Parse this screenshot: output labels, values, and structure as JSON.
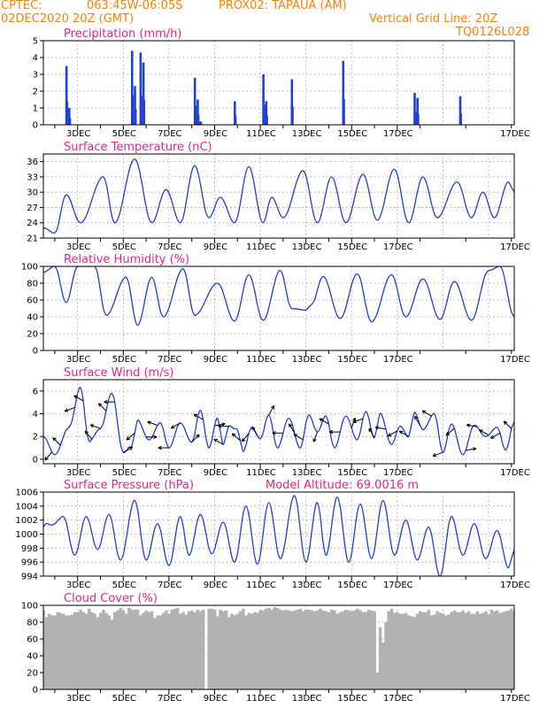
{
  "header": {
    "source": "CPTEC:",
    "coords": "063:45W-06:05S",
    "station": "PROX02: TAPAUA (AM)",
    "date": "02DEC2020 20Z (GMT)",
    "grid_note": "Vertical Grid Line: 20Z",
    "run_code": "TQ0126L028"
  },
  "colors": {
    "header": "#ff7f00",
    "title": "#e8238a",
    "series": "#1f3fd6",
    "cloud": "#b2b2b2",
    "grid": "#9a9a9a"
  },
  "x_axis": {
    "date_labels": [
      "3DEC",
      "5DEC",
      "7DEC",
      "9DEC",
      "11DEC",
      "13DEC",
      "15DEC",
      "17DEC"
    ],
    "start": "02DEC2020 20Z",
    "end": "17DEC2020 00Z",
    "step_hours": 3
  },
  "chart_data": [
    {
      "type": "bar",
      "title": "Precipitation (mm/h)",
      "ylim": [
        0,
        5
      ],
      "yticks": [
        "0",
        "1",
        "2",
        "3",
        "4",
        "5"
      ],
      "values": [
        0,
        0,
        0,
        0,
        0,
        0,
        0,
        0,
        3.5,
        1.0,
        0,
        0,
        0,
        0,
        0,
        0,
        0,
        0,
        0,
        0,
        0,
        0,
        0,
        0,
        0,
        0,
        0,
        0,
        0,
        0,
        0,
        4.4,
        2.3,
        0,
        4.3,
        3.7,
        0,
        0,
        0,
        0,
        0,
        0,
        0,
        0,
        0,
        0,
        0,
        0,
        0,
        0,
        0,
        0,
        0,
        2.8,
        1.5,
        0.2,
        0,
        0,
        0,
        0,
        0,
        0,
        0,
        0,
        0,
        0,
        0,
        1.4,
        0,
        0,
        0,
        0,
        0,
        0,
        0,
        0,
        0,
        3.0,
        1.4,
        0,
        0,
        0,
        0,
        0,
        0,
        0,
        0,
        2.7,
        0,
        0,
        0,
        0,
        0,
        0,
        0,
        0,
        0,
        0,
        0,
        0,
        0,
        0,
        0,
        0,
        0,
        3.8,
        0,
        0,
        0,
        0,
        0,
        0,
        0,
        0,
        0,
        0,
        0,
        0,
        0,
        0,
        0,
        0,
        0,
        0,
        0,
        0,
        0,
        0,
        0,
        0,
        1.9,
        1.6,
        0,
        0,
        0,
        0,
        0,
        0,
        0,
        0,
        0,
        0,
        0,
        0,
        0,
        0,
        1.7
      ]
    },
    {
      "type": "line",
      "title": "Surface Temperature (nC)",
      "ylim": [
        21,
        37.5
      ],
      "yticks": [
        "21",
        "24",
        "27",
        "30",
        "33",
        "36"
      ],
      "extrema": [
        [
          0,
          23
        ],
        [
          4,
          22
        ],
        [
          8,
          29.5
        ],
        [
          13,
          24
        ],
        [
          21,
          33
        ],
        [
          25,
          24
        ],
        [
          32,
          36.5
        ],
        [
          38,
          24
        ],
        [
          43,
          30.5
        ],
        [
          48,
          24
        ],
        [
          53,
          35.2
        ],
        [
          58,
          25
        ],
        [
          62,
          29
        ],
        [
          67,
          24
        ],
        [
          72,
          35
        ],
        [
          77,
          24
        ],
        [
          80,
          29
        ],
        [
          84,
          25
        ],
        [
          91,
          34.2
        ],
        [
          96,
          24
        ],
        [
          101,
          33
        ],
        [
          106,
          24
        ],
        [
          112,
          33.5
        ],
        [
          117,
          24.5
        ],
        [
          123,
          34.5
        ],
        [
          128,
          24
        ],
        [
          133,
          33
        ],
        [
          138,
          25
        ],
        [
          145,
          32
        ],
        [
          150,
          25
        ],
        [
          154,
          30
        ],
        [
          158,
          25
        ],
        [
          163,
          32
        ],
        [
          165,
          30
        ]
      ]
    },
    {
      "type": "line",
      "title": "Relative Humidity (%)",
      "ylim": [
        0,
        100
      ],
      "yticks": [
        "0",
        "20",
        "40",
        "60",
        "80",
        "100"
      ],
      "extrema": [
        [
          0,
          93
        ],
        [
          4,
          100
        ],
        [
          8,
          57
        ],
        [
          12,
          100
        ],
        [
          18,
          100
        ],
        [
          22,
          42
        ],
        [
          29,
          87
        ],
        [
          33,
          30
        ],
        [
          38,
          87
        ],
        [
          42,
          40
        ],
        [
          49,
          97
        ],
        [
          53,
          42
        ],
        [
          61,
          80
        ],
        [
          67,
          35
        ],
        [
          72,
          90
        ],
        [
          77,
          36
        ],
        [
          83,
          95
        ],
        [
          87,
          50
        ],
        [
          92,
          48
        ],
        [
          94,
          55
        ],
        [
          98,
          88
        ],
        [
          104,
          38
        ],
        [
          110,
          91
        ],
        [
          115,
          34
        ],
        [
          122,
          90
        ],
        [
          127,
          40
        ],
        [
          133,
          85
        ],
        [
          139,
          37
        ],
        [
          144,
          82
        ],
        [
          150,
          36
        ],
        [
          156,
          95
        ],
        [
          160,
          100
        ],
        [
          165,
          40
        ]
      ]
    },
    {
      "type": "line",
      "title": "Surface Wind (m/s)",
      "ylim": [
        -0.4,
        7
      ],
      "yticks": [
        "0",
        "2",
        "4",
        "6"
      ],
      "extrema": [
        [
          0,
          2.0
        ],
        [
          4,
          0.4
        ],
        [
          9,
          2.8
        ],
        [
          13,
          6.3
        ],
        [
          16,
          1.6
        ],
        [
          20,
          2.7
        ],
        [
          24,
          5.8
        ],
        [
          28,
          0.6
        ],
        [
          31,
          1.2
        ],
        [
          33,
          3.4
        ],
        [
          37,
          1.7
        ],
        [
          41,
          3.2
        ],
        [
          44,
          1.0
        ],
        [
          48,
          3.2
        ],
        [
          52,
          1.5
        ],
        [
          55,
          4.3
        ],
        [
          58,
          1.0
        ],
        [
          61,
          3.6
        ],
        [
          63,
          1.3
        ],
        [
          65,
          2.9
        ],
        [
          68,
          2.6
        ],
        [
          70,
          0.7
        ],
        [
          73,
          2.8
        ],
        [
          76,
          1.8
        ],
        [
          79,
          3.9
        ],
        [
          82,
          1.0
        ],
        [
          86,
          3.6
        ],
        [
          90,
          1.0
        ],
        [
          93,
          3.9
        ],
        [
          96,
          2.4
        ],
        [
          99,
          3.8
        ],
        [
          102,
          1.0
        ],
        [
          106,
          3.8
        ],
        [
          110,
          1.7
        ],
        [
          113,
          4.2
        ],
        [
          116,
          1.9
        ],
        [
          118,
          4.0
        ],
        [
          122,
          1.3
        ],
        [
          125,
          2.9
        ],
        [
          128,
          2.0
        ],
        [
          130,
          4.1
        ],
        [
          133,
          2.6
        ],
        [
          137,
          4.0
        ],
        [
          140,
          0.6
        ],
        [
          143,
          3.1
        ],
        [
          147,
          0.4
        ],
        [
          151,
          3.0
        ],
        [
          155,
          2.0
        ],
        [
          159,
          2.8
        ],
        [
          162,
          0.8
        ],
        [
          165,
          3.3
        ]
      ],
      "wind_arrows": [
        [
          3,
          220
        ],
        [
          6,
          315
        ],
        [
          11,
          250
        ],
        [
          14,
          300
        ],
        [
          17,
          320
        ],
        [
          20,
          290
        ],
        [
          22,
          315
        ],
        [
          25,
          270
        ],
        [
          28,
          60
        ],
        [
          32,
          230
        ],
        [
          36,
          90
        ],
        [
          40,
          290
        ],
        [
          44,
          270
        ],
        [
          48,
          240
        ],
        [
          52,
          45
        ],
        [
          56,
          300
        ],
        [
          60,
          80
        ],
        [
          63,
          300
        ],
        [
          65,
          270
        ],
        [
          69,
          310
        ],
        [
          72,
          220
        ],
        [
          75,
          330
        ],
        [
          79,
          30
        ],
        [
          84,
          270
        ],
        [
          88,
          330
        ],
        [
          91,
          300
        ],
        [
          96,
          200
        ],
        [
          100,
          300
        ],
        [
          104,
          270
        ],
        [
          108,
          20
        ],
        [
          112,
          250
        ],
        [
          116,
          330
        ],
        [
          120,
          280
        ],
        [
          124,
          240
        ],
        [
          128,
          300
        ],
        [
          132,
          330
        ],
        [
          136,
          300
        ],
        [
          140,
          250
        ],
        [
          144,
          230
        ],
        [
          148,
          80
        ],
        [
          152,
          280
        ],
        [
          156,
          300
        ],
        [
          160,
          240
        ],
        [
          164,
          315
        ]
      ]
    },
    {
      "type": "line",
      "title": "Surface Pressure (hPa)",
      "annotation": "Model Altitude: 69.0016 m",
      "ylim": [
        994,
        1006
      ],
      "yticks": [
        "994",
        "996",
        "998",
        "1000",
        "1002",
        "1004",
        "1006"
      ],
      "extrema": [
        [
          0,
          1001
        ],
        [
          1,
          1001.5
        ],
        [
          3,
          1001.3
        ],
        [
          7,
          1002.5
        ],
        [
          11,
          997
        ],
        [
          15,
          1002.5
        ],
        [
          19,
          997.8
        ],
        [
          23,
          1002.8
        ],
        [
          27,
          996.3
        ],
        [
          32,
          1004.8
        ],
        [
          36,
          996.3
        ],
        [
          40,
          1001.5
        ],
        [
          44,
          995.5
        ],
        [
          48,
          1002.5
        ],
        [
          51,
          997
        ],
        [
          55,
          1002.8
        ],
        [
          59,
          997.2
        ],
        [
          63,
          1001.7
        ],
        [
          67,
          996
        ],
        [
          71,
          1004
        ],
        [
          75,
          995.7
        ],
        [
          79,
          1004.5
        ],
        [
          83,
          996.5
        ],
        [
          88,
          1005.5
        ],
        [
          92,
          996
        ],
        [
          96,
          1004.5
        ],
        [
          99,
          997
        ],
        [
          103,
          1005.3
        ],
        [
          107,
          996
        ],
        [
          111,
          1004.3
        ],
        [
          115,
          996.5
        ],
        [
          119,
          1004.8
        ],
        [
          123,
          997
        ],
        [
          127,
          1002
        ],
        [
          131,
          996.3
        ],
        [
          135,
          1001
        ],
        [
          139,
          994
        ],
        [
          143,
          1002.5
        ],
        [
          147,
          997
        ],
        [
          151,
          1001.5
        ],
        [
          155,
          996.5
        ],
        [
          159,
          1000.5
        ],
        [
          163,
          995.2
        ],
        [
          165,
          997.8
        ]
      ]
    },
    {
      "type": "bar",
      "title": "Cloud Cover (%)",
      "ylim": [
        0,
        100
      ],
      "yticks": [
        "0",
        "20",
        "40",
        "60",
        "80",
        "100"
      ],
      "values": [
        94,
        86,
        90,
        88,
        88,
        92,
        91,
        90,
        88,
        88,
        89,
        92,
        92,
        95,
        92,
        90,
        96,
        92,
        90,
        86,
        91,
        95,
        91,
        88,
        83,
        92,
        94,
        97,
        94,
        90,
        97,
        95,
        95,
        95,
        88,
        91,
        94,
        92,
        93,
        85,
        88,
        88,
        91,
        94,
        90,
        95,
        96,
        97,
        90,
        92,
        89,
        93,
        94,
        92,
        95,
        93,
        95,
        0,
        96,
        96,
        95,
        87,
        95,
        93,
        94,
        86,
        90,
        88,
        90,
        93,
        96,
        88,
        91,
        90,
        92,
        91,
        94,
        94,
        96,
        97,
        95,
        98,
        97,
        95,
        94,
        95,
        94,
        93,
        94,
        95,
        96,
        93,
        95,
        95,
        94,
        93,
        94,
        96,
        94,
        93,
        92,
        95,
        94,
        90,
        92,
        93,
        95,
        94,
        93,
        94,
        96,
        94,
        92,
        92,
        95,
        94,
        93,
        20,
        74,
        56,
        80,
        93,
        96,
        91,
        92,
        90,
        90,
        91,
        88,
        87,
        86,
        90,
        93,
        92,
        92,
        95,
        88,
        89,
        93,
        91,
        90,
        88,
        89,
        92,
        94,
        92,
        92,
        94,
        91,
        93,
        90,
        90,
        93,
        90,
        91,
        93,
        89,
        95,
        93,
        94,
        91,
        92,
        93,
        94,
        96,
        93
      ]
    }
  ]
}
